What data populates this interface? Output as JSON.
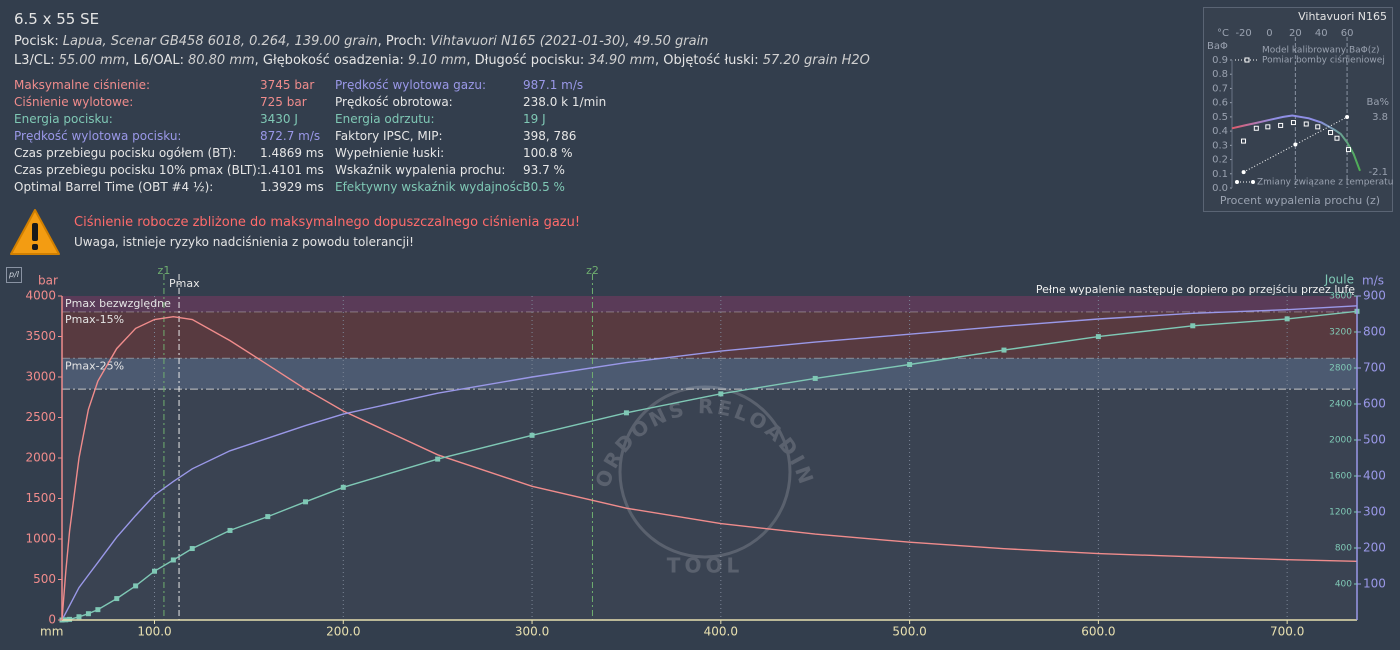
{
  "header": {
    "title": "6.5 x 55 SE",
    "line1": [
      {
        "label": "Pocisk:",
        "value": "Lapua, Scenar GB458 6018, 0.264, 139.00 grain"
      },
      {
        "label": ", Proch:",
        "value": "Vihtavuori N165 (2021-01-30), 49.50 grain"
      }
    ],
    "line2": [
      {
        "label": "L3/CL:",
        "value": "55.00 mm"
      },
      {
        "label": ", L6/OAL:",
        "value": "80.80 mm"
      },
      {
        "label": ", Głębokość osadzenia:",
        "value": "9.10 mm"
      },
      {
        "label": ", Długość pocisku:",
        "value": "34.90 mm"
      },
      {
        "label": ", Objętość łuski:",
        "value": "57.20 grain H2O"
      }
    ]
  },
  "stats": {
    "left": [
      {
        "label": "Maksymalne ciśnienie:",
        "value": "3745 bar",
        "color": "#f08c8c"
      },
      {
        "label": "Ciśnienie wylotowe:",
        "value": "725 bar",
        "color": "#f08c8c"
      },
      {
        "label": "Energia pocisku:",
        "value": "3430 J",
        "color": "#7fc8b5"
      },
      {
        "label": "Prędkość wylotowa pocisku:",
        "value": "872.7 m/s",
        "color": "#9a98e8"
      },
      {
        "label": "Czas przebiegu pocisku ogółem (BT):",
        "value": "1.4869 ms",
        "color": "#e6e6e6"
      },
      {
        "label": "Czas przebiegu pocisku 10% pmax (BLT):",
        "value": "1.4101 ms",
        "color": "#e6e6e6"
      },
      {
        "label": "Optimal Barrel Time (OBT #4 ½):",
        "value": "1.3929 ms",
        "color": "#e6e6e6"
      }
    ],
    "right": [
      {
        "label": "Prędkość wylotowa gazu:",
        "value": "987.1 m/s",
        "color": "#9a98e8"
      },
      {
        "label": "Prędkość obrotowa:",
        "value": "238.0 k 1/min",
        "color": "#e6e6e6"
      },
      {
        "label": "Energia odrzutu:",
        "value": "19 J",
        "color": "#7fc8b5"
      },
      {
        "label": "Faktory IPSC, MIP:",
        "value": "398, 786",
        "color": "#e6e6e6"
      },
      {
        "label": "Wypełnienie łuski:",
        "value": "100.8 %",
        "color": "#e6e6e6"
      },
      {
        "label": "Wskaźnik wypalenia prochu:",
        "value": "93.7 %",
        "color": "#e6e6e6"
      },
      {
        "label": "Efektywny wskaźnik wydajności:",
        "value": "30.5 %",
        "color": "#7fc8b5"
      }
    ]
  },
  "warning": {
    "title": "Ciśnienie robocze zbliżone do maksymalnego dopuszczalnego ciśnienia gazu!",
    "text": "Uwaga, istnieje ryzyko nadciśnienia z powodu tolerancji!"
  },
  "toolbar": {
    "button": "p/l"
  },
  "chart_data": [
    {
      "type": "line",
      "xlabel": "mm",
      "ylabel": "bar",
      "y2label": "m/s",
      "y3label": "Joule",
      "annotation": "Pełne wypalenie następuje dopiero po przejściu przez lufę",
      "watermark": [
        "GORDONS RELOADING",
        "TOOL"
      ],
      "grid": true,
      "x": [
        51,
        53,
        55,
        60,
        65,
        70,
        80,
        90,
        100,
        110,
        120,
        140,
        160,
        180,
        200,
        250,
        300,
        350,
        400,
        450,
        500,
        550,
        600,
        650,
        700,
        737
      ],
      "xlim": [
        51,
        737
      ],
      "xticks": [
        {
          "value": 100,
          "label": "100.0"
        },
        {
          "value": 200,
          "label": "200.0"
        },
        {
          "value": 300,
          "label": "300.0"
        },
        {
          "value": 400,
          "label": "400.0"
        },
        {
          "value": 500,
          "label": "500.0"
        },
        {
          "value": 600,
          "label": "600.0"
        },
        {
          "value": 700,
          "label": "700.0"
        }
      ],
      "ylim": [
        0,
        4000
      ],
      "yticks": [
        0,
        500,
        1000,
        1500,
        2000,
        2500,
        3000,
        3500,
        4000
      ],
      "y2lim": [
        0,
        900
      ],
      "y2ticks": [
        100,
        200,
        300,
        400,
        500,
        600,
        700,
        800,
        900
      ],
      "y3lim": [
        0,
        3600
      ],
      "y3ticks": [
        400,
        800,
        1200,
        1600,
        2000,
        2400,
        2800,
        3200,
        3600
      ],
      "bands": [
        {
          "label": "Pmax bezwzględne",
          "value": 3800,
          "color": "#5a3b58"
        },
        {
          "label": "Pmax-15%",
          "value": 3230,
          "color": "#583a40"
        },
        {
          "label": "Pmax-25%",
          "value": 2850,
          "color": "#4c5a71"
        }
      ],
      "vlines": [
        {
          "label": "z1",
          "value": 105,
          "color": "#6fae6f"
        },
        {
          "label": "Pmax",
          "value": 113,
          "color": "#e8e8e8"
        },
        {
          "label": "z2",
          "value": 332,
          "color": "#6fae6f"
        }
      ],
      "series": [
        {
          "color": "#f08c8c",
          "axis": "y",
          "values": [
            0,
            600,
            1100,
            2000,
            2600,
            2950,
            3350,
            3600,
            3710,
            3745,
            3710,
            3450,
            3150,
            2850,
            2580,
            2040,
            1650,
            1380,
            1190,
            1060,
            960,
            880,
            820,
            780,
            745,
            725
          ]
        },
        {
          "color": "#9a98e8",
          "axis": "y2",
          "values": [
            0,
            20,
            40,
            90,
            125,
            160,
            230,
            290,
            347,
            385,
            420,
            470,
            505,
            540,
            572,
            630,
            675,
            715,
            747,
            772,
            794,
            816,
            836,
            852,
            862,
            872.7
          ]
        },
        {
          "color": "#7fc8b5",
          "axis": "y3",
          "marker": "square",
          "values": [
            0,
            2,
            7,
            36,
            70,
            115,
            238,
            379,
            542,
            667,
            794,
            995,
            1149,
            1313,
            1474,
            1788,
            2052,
            2302,
            2513,
            2684,
            2839,
            2999,
            3149,
            3269,
            3346,
            3430
          ]
        }
      ]
    },
    {
      "type": "line",
      "title": "Vihtavuori N165",
      "xlabel": "Procent wypalenia prochu (z)",
      "ylabel": "BaΦ",
      "y2label": "Ba%",
      "x2label": "°C",
      "xlim": [
        0,
        1
      ],
      "ylim": [
        0,
        0.9
      ],
      "yticks": [
        {
          "value": 0,
          "label": "0.0"
        },
        0.1,
        0.2,
        0.3,
        0.4,
        0.5,
        0.6,
        0.7,
        0.8,
        0.9
      ],
      "y2lim": [
        -3.8,
        9.9
      ],
      "y2ticks": [
        3.8,
        -2.1
      ],
      "x2lim": [
        -29,
        70
      ],
      "x2ticks": [
        -20,
        0,
        20,
        40,
        60
      ],
      "x2grid": [
        20,
        60
      ],
      "series": [
        {
          "name": "Model kalibrowany BaΦ(z)",
          "colors": [
            "#e05a6a",
            "#8f8fe6",
            "#8f8fe6",
            "#4caf50"
          ],
          "x": [
            0,
            0.1,
            0.2,
            0.3,
            0.4,
            0.47,
            0.6,
            0.7,
            0.8,
            0.85,
            0.9,
            0.95,
            1.0
          ],
          "values": [
            0.42,
            0.44,
            0.46,
            0.48,
            0.5,
            0.51,
            0.49,
            0.46,
            0.41,
            0.38,
            0.32,
            0.24,
            0.12
          ]
        },
        {
          "name": "Pomiar bomby ciśnieniowej",
          "color": "#ffffff",
          "marker": "square",
          "x": [
            0.09,
            0.19,
            0.28,
            0.38,
            0.48,
            0.58,
            0.67,
            0.77,
            0.82,
            0.91
          ],
          "values": [
            0.33,
            0.42,
            0.43,
            0.44,
            0.46,
            0.45,
            0.43,
            0.39,
            0.35,
            0.27
          ]
        },
        {
          "name": "Zmiany związane z temperaturą",
          "color": "#ffffff",
          "marker": "circle",
          "axis": "y2",
          "xaxis": "x2",
          "x": [
            -20,
            20,
            60
          ],
          "values": [
            -2.1,
            0.85,
            3.8
          ]
        }
      ]
    }
  ]
}
